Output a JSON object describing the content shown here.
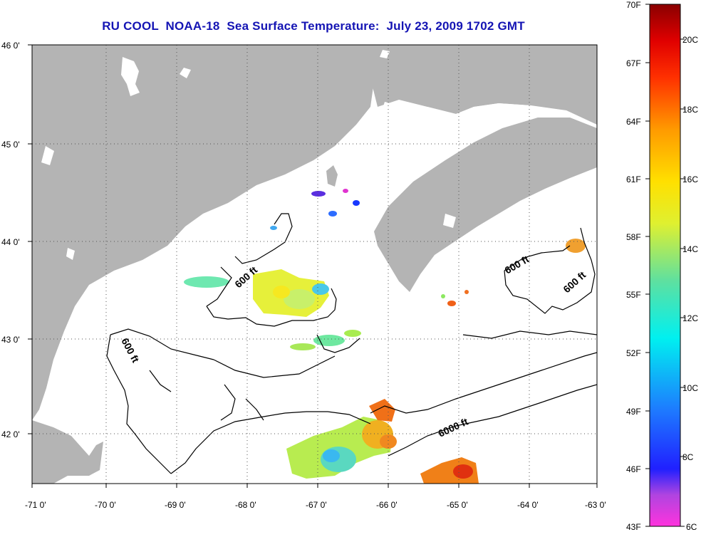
{
  "title": "RU COOL  NOAA-18  Sea Surface Temperature:  July 23, 2009 1702 GMT",
  "lat_labels": [
    "46 0'",
    "45 0'",
    "44 0'",
    "43 0'",
    "42 0'"
  ],
  "lon_labels": [
    "-71 0'",
    "-70 0'",
    "-69 0'",
    "-68 0'",
    "-67 0'",
    "-66 0'",
    "-65 0'",
    "-64 0'",
    "-63 0'"
  ],
  "isobath_labels": [
    "600 ft",
    "600 ft",
    "600 ft",
    "600 ft",
    "6000 ft"
  ],
  "colorbar": {
    "f_labels": [
      "70F",
      "67F",
      "64F",
      "61F",
      "58F",
      "55F",
      "52F",
      "49F",
      "46F",
      "43F"
    ],
    "c_labels": [
      "20C",
      "18C",
      "16C",
      "14C",
      "12C",
      "10C",
      "8C",
      "6C"
    ]
  },
  "colors": {
    "land": "#b4b4b4",
    "title": "#1414b4",
    "grid": "#555555"
  }
}
